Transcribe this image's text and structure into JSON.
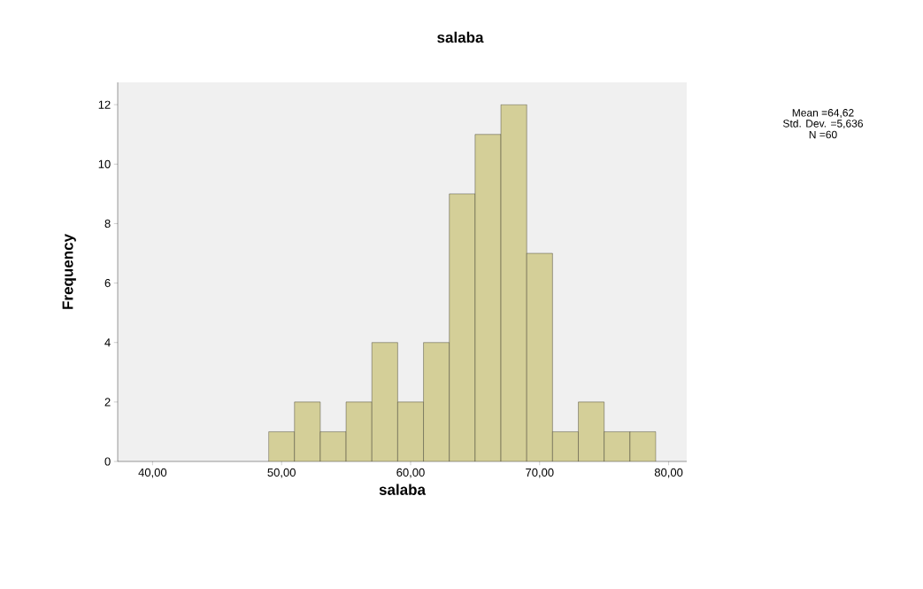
{
  "chart_data": {
    "type": "histogram",
    "title": "salaba",
    "xlabel": "salaba",
    "ylabel": "Frequency",
    "bins": [
      49,
      51,
      53,
      55,
      57,
      59,
      61,
      63,
      65,
      67,
      69,
      71,
      73,
      75,
      77,
      79
    ],
    "values": [
      1,
      2,
      1,
      2,
      4,
      2,
      4,
      9,
      11,
      12,
      7,
      1,
      2,
      1,
      1
    ],
    "color": "#d4cf98",
    "xlim": [
      37.3,
      81.4
    ],
    "ylim": [
      0,
      12.75
    ],
    "xticks": [
      {
        "value": 40,
        "label": "40,00"
      },
      {
        "value": 50,
        "label": "50,00"
      },
      {
        "value": 60,
        "label": "60,00"
      },
      {
        "value": 70,
        "label": "70,00"
      },
      {
        "value": 80,
        "label": "80,00"
      }
    ],
    "yticks": [
      0,
      2,
      4,
      6,
      8,
      10,
      12
    ],
    "annotations": [
      "Mean =64,62",
      "Std. Dev. =5,636",
      "N =60"
    ],
    "grid": false
  }
}
